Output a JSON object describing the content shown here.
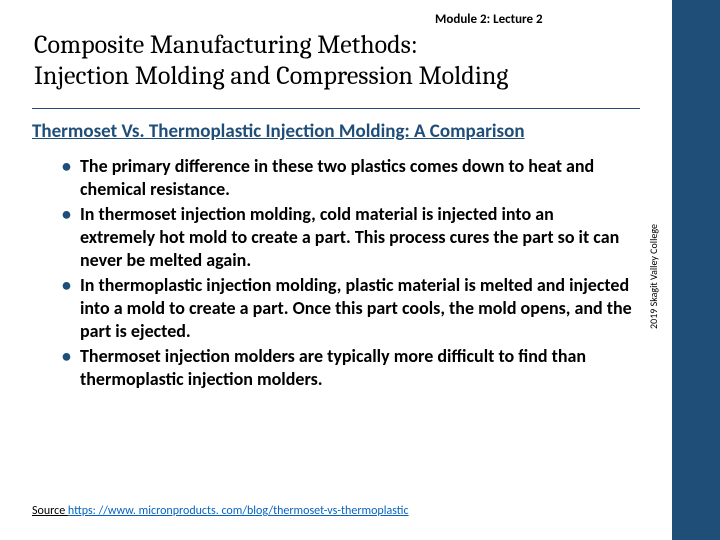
{
  "colors": {
    "accent": "#1f4e79",
    "link": "#0563c1",
    "text": "#000000",
    "background": "#ffffff"
  },
  "module_label": "Module 2: Lecture 2",
  "title_line1": "Composite Manufacturing Methods:",
  "title_line2": "Injection Molding and Compression Molding",
  "sub_heading": "Thermoset Vs. Thermoplastic Injection Molding: A Comparison",
  "bullets": [
    {
      "pre": "The primary difference in these two plastics comes down to heat and chemical resistance."
    },
    {
      "pre": "In ",
      "bold": "thermoset",
      "post": " injection molding, cold material is injected into an extremely hot mold to create a part. This process cures the part so it can never be melted again."
    },
    {
      "pre": "In ",
      "bold": "thermoplastic",
      "post": " injection molding, plastic material is melted and injected into a mold to create a part. Once this part cools, the mold opens, and the part is ejected."
    },
    {
      "pre": "Thermoset injection molders are typically more difficult to find than thermoplastic injection molders."
    }
  ],
  "source": {
    "prefix": "Source ",
    "url_text": "https: //www. micronproducts. com/blog/thermoset-vs-thermoplastic"
  },
  "sidebar_text": "2019 Skagit Valley College"
}
